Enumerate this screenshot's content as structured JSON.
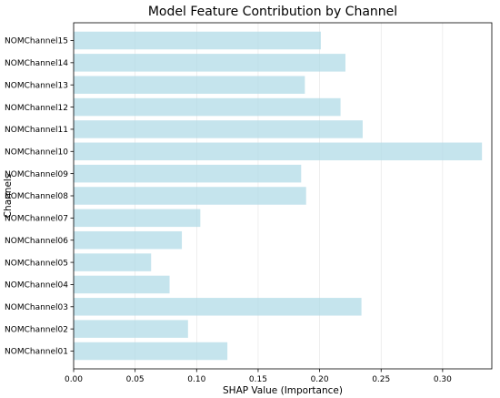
{
  "chart_data": {
    "type": "bar",
    "orientation": "horizontal",
    "title": "Model Feature Contribution by Channel",
    "xlabel": "SHAP Value (Importance)",
    "ylabel": "Channels",
    "categories": [
      "NOMChannel01",
      "NOMChannel02",
      "NOMChannel03",
      "NOMChannel04",
      "NOMChannel05",
      "NOMChannel06",
      "NOMChannel07",
      "NOMChannel08",
      "NOMChannel09",
      "NOMChannel10",
      "NOMChannel11",
      "NOMChannel12",
      "NOMChannel13",
      "NOMChannel14",
      "NOMChannel15"
    ],
    "values": [
      0.125,
      0.093,
      0.234,
      0.078,
      0.063,
      0.088,
      0.103,
      0.189,
      0.185,
      0.332,
      0.235,
      0.217,
      0.188,
      0.221,
      0.201
    ],
    "xlim": [
      0,
      0.34
    ],
    "xticks": [
      "0.00",
      "0.05",
      "0.10",
      "0.15",
      "0.20",
      "0.25",
      "0.30"
    ],
    "grid": "x-axis vertical lines",
    "bar_color": "#add8e6",
    "bar_opacity": 0.7
  }
}
